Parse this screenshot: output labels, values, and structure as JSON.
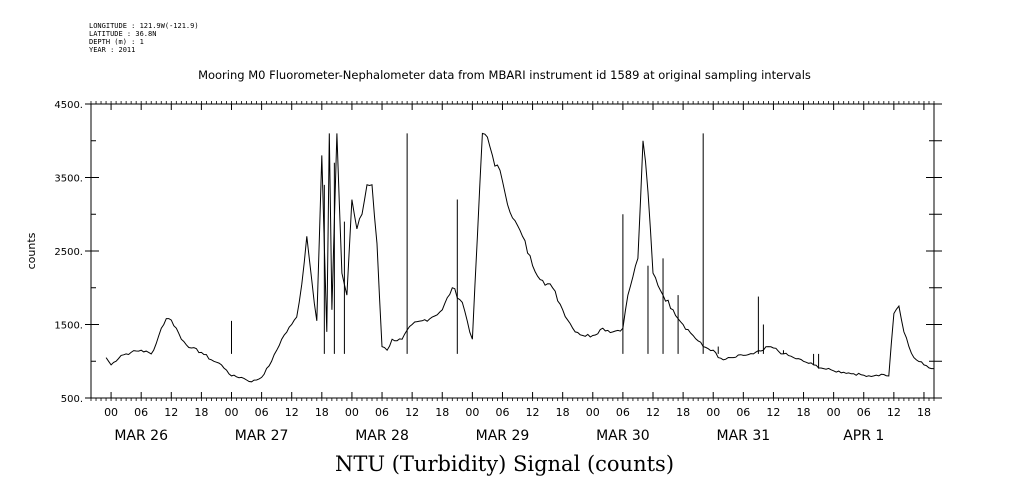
{
  "header": {
    "longitude": "LONGITUDE : 121.9W(-121.9)",
    "latitude": "LATITUDE : 36.8N",
    "depth": "DEPTH (m) : 1",
    "year": "YEAR : 2011"
  },
  "chart_data": {
    "type": "line",
    "title": "Mooring M0 Fluorometer-Nephalometer data from MBARI instrument id 1589 at original sampling intervals",
    "xlabel": "",
    "ylabel": "counts",
    "footer": "NTU (Turbidity) Signal (counts)",
    "xlim_hours": [
      -4,
      164
    ],
    "ylim": [
      500,
      4500
    ],
    "y_ticks": [
      "500.",
      "1500.",
      "2500.",
      "3500.",
      "4500."
    ],
    "hour_tick_labels": [
      "00",
      "06",
      "12",
      "18"
    ],
    "day_labels": [
      "MAR 26",
      "MAR 27",
      "MAR 28",
      "MAR 29",
      "MAR 30",
      "MAR 31",
      "APR  1"
    ],
    "series": [
      {
        "points": [
          [
            -1.0,
            1050
          ],
          [
            0,
            950
          ],
          [
            2,
            1080
          ],
          [
            4,
            1120
          ],
          [
            6,
            1150
          ],
          [
            8,
            1100
          ],
          [
            9.0,
            1240
          ],
          [
            10,
            1450
          ],
          [
            11,
            1580
          ],
          [
            12,
            1560
          ],
          [
            13,
            1450
          ],
          [
            14,
            1300
          ],
          [
            16,
            1180
          ],
          [
            18,
            1120
          ],
          [
            20,
            1020
          ],
          [
            22,
            950
          ],
          [
            23.0,
            880
          ],
          [
            24,
            800
          ],
          [
            26,
            780
          ],
          [
            28,
            720
          ],
          [
            30,
            780
          ],
          [
            32,
            1000
          ],
          [
            34,
            1300
          ],
          [
            36,
            1500
          ],
          [
            37,
            1600
          ],
          [
            38,
            2050
          ],
          [
            39,
            2700
          ],
          [
            40,
            2100
          ],
          [
            41,
            1550
          ],
          [
            42,
            3800
          ],
          [
            43,
            1400
          ],
          [
            43.5,
            4100
          ],
          [
            44,
            1700
          ],
          [
            45,
            4100
          ],
          [
            46,
            2200
          ],
          [
            47,
            1900
          ],
          [
            48,
            3200
          ],
          [
            49,
            2800
          ],
          [
            50,
            3000
          ],
          [
            51,
            3400
          ],
          [
            52,
            3400
          ],
          [
            53,
            2600
          ],
          [
            54,
            1200
          ],
          [
            55,
            1150
          ],
          [
            56,
            1300
          ],
          [
            57,
            1280
          ],
          [
            58,
            1300
          ],
          [
            60,
            1500
          ],
          [
            62,
            1550
          ],
          [
            64,
            1600
          ],
          [
            66,
            1700
          ],
          [
            68,
            2000
          ],
          [
            70,
            1800
          ],
          [
            72,
            1300
          ],
          [
            74,
            4100
          ],
          [
            75,
            4050
          ],
          [
            76,
            3800
          ],
          [
            78,
            3450
          ],
          [
            80,
            2950
          ],
          [
            82,
            2700
          ],
          [
            84,
            2300
          ],
          [
            86,
            2100
          ],
          [
            88,
            2000
          ],
          [
            90,
            1700
          ],
          [
            92,
            1450
          ],
          [
            94,
            1350
          ],
          [
            96,
            1350
          ],
          [
            98,
            1450
          ],
          [
            100,
            1400
          ],
          [
            102,
            1450
          ],
          [
            103,
            1900
          ],
          [
            104,
            2150
          ],
          [
            105,
            2400
          ],
          [
            106,
            4000
          ],
          [
            107,
            3300
          ],
          [
            108,
            2200
          ],
          [
            110,
            1900
          ],
          [
            112,
            1700
          ],
          [
            114,
            1500
          ],
          [
            116,
            1350
          ],
          [
            118,
            1200
          ],
          [
            120,
            1150
          ],
          [
            121,
            1050
          ],
          [
            122,
            1020
          ],
          [
            124,
            1050
          ],
          [
            126,
            1080
          ],
          [
            128,
            1100
          ],
          [
            130,
            1150
          ],
          [
            131,
            1200
          ],
          [
            132,
            1180
          ],
          [
            134,
            1100
          ],
          [
            136,
            1050
          ],
          [
            138,
            1000
          ],
          [
            140,
            950
          ],
          [
            142,
            900
          ],
          [
            144,
            870
          ],
          [
            146,
            850
          ],
          [
            148,
            830
          ],
          [
            150,
            810
          ],
          [
            152,
            800
          ],
          [
            154,
            820
          ]
        ]
      }
    ],
    "spikes_hours": [
      [
        24.0,
        1550
      ],
      [
        42.5,
        3400
      ],
      [
        44.5,
        3700
      ],
      [
        46.5,
        2900
      ],
      [
        59.0,
        4100
      ],
      [
        69.0,
        3200
      ],
      [
        102.0,
        3000
      ],
      [
        107.0,
        2300
      ],
      [
        110.0,
        2400
      ],
      [
        113.0,
        1900
      ],
      [
        118.0,
        4100
      ],
      [
        121.0,
        1200
      ],
      [
        129.0,
        1880
      ],
      [
        130.0,
        1500
      ],
      [
        134.0,
        1150
      ],
      [
        140.0,
        950
      ],
      [
        141.0,
        900
      ]
    ],
    "tail": [
      [
        154,
        820
      ],
      [
        155,
        800
      ],
      [
        156,
        1650
      ],
      [
        157,
        1750
      ],
      [
        158,
        1400
      ],
      [
        159,
        1200
      ],
      [
        160,
        1050
      ],
      [
        162,
        950
      ],
      [
        164,
        900
      ]
    ]
  }
}
